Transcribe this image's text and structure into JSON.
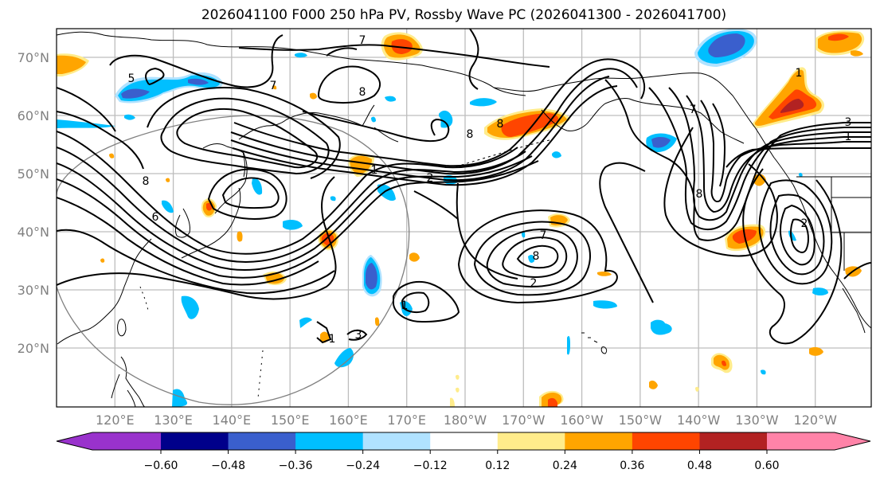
{
  "title": "2026041100 F000 250 hPa PV, Rossby Wave PC (2026041300 - 2026041700)",
  "map": {
    "extent": {
      "lon_min": 110,
      "lon_max": 250,
      "lat_min": 10,
      "lat_max": 75
    },
    "lat_ticks": [
      {
        "value": 70,
        "label": "70°N"
      },
      {
        "value": 60,
        "label": "60°N"
      },
      {
        "value": 50,
        "label": "50°N"
      },
      {
        "value": 40,
        "label": "40°N"
      },
      {
        "value": 30,
        "label": "30°N"
      },
      {
        "value": 20,
        "label": "20°N"
      }
    ],
    "lon_ticks": [
      {
        "value": 120,
        "label": "120°E"
      },
      {
        "value": 130,
        "label": "130°E"
      },
      {
        "value": 140,
        "label": "140°E"
      },
      {
        "value": 150,
        "label": "150°E"
      },
      {
        "value": 160,
        "label": "160°E"
      },
      {
        "value": 170,
        "label": "170°E"
      },
      {
        "value": 180,
        "label": "180°W"
      },
      {
        "value": 190,
        "label": "170°W"
      },
      {
        "value": 200,
        "label": "160°W"
      },
      {
        "value": 210,
        "label": "150°W"
      },
      {
        "value": 220,
        "label": "140°W"
      },
      {
        "value": 230,
        "label": "130°W"
      },
      {
        "value": 240,
        "label": "120°W"
      }
    ],
    "contour_labels": [
      "5",
      "7",
      "8",
      "7",
      "1",
      "2",
      "8",
      "7",
      "3",
      "1",
      "8",
      "6",
      "8",
      "7",
      "2",
      "8",
      "3",
      "1",
      "8",
      "2",
      "1",
      "1"
    ],
    "grid_color": "#bdbdbd",
    "circle_color": "#808080"
  },
  "colorbar": {
    "levels": [
      "-0.60",
      "-0.48",
      "-0.36",
      "-0.24",
      "-0.12",
      "0.12",
      "0.24",
      "0.36",
      "0.48",
      "0.60"
    ],
    "colors": [
      "#9932cc",
      "#00008b",
      "#3a5fcd",
      "#00bfff",
      "#b0e2ff",
      "#ffffff",
      "#ffec8b",
      "#ffa500",
      "#ff4500",
      "#b22222",
      "#ff83a8"
    ],
    "extend": "both"
  },
  "palette": {
    "neg1": "#b0e2ff",
    "neg2": "#00bfff",
    "neg3": "#3a5fcd",
    "neg4": "#00008b",
    "pos1": "#ffec8b",
    "pos2": "#ffa500",
    "pos3": "#ff4500",
    "pos4": "#b22222"
  }
}
